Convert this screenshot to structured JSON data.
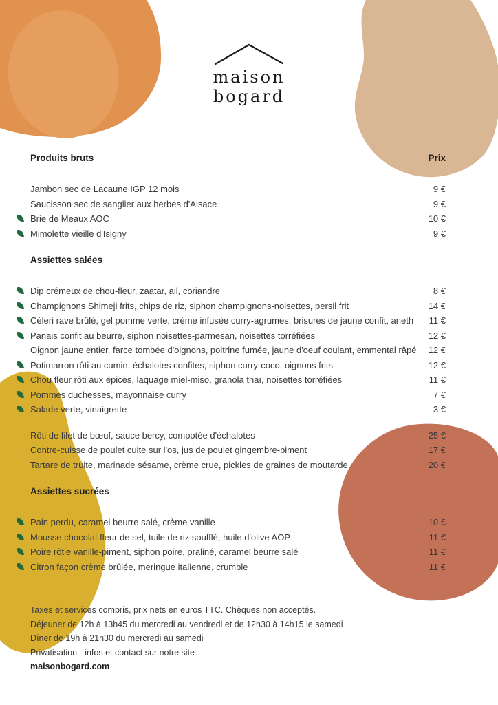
{
  "logo": {
    "name_line1": "maison",
    "name_line2": "bogard"
  },
  "price_column_label": "Prix",
  "sections": [
    {
      "title": "Produits bruts",
      "groups": [
        [
          {
            "leaf": false,
            "name": "Jambon sec de Lacaune IGP 12 mois",
            "price": "9 €"
          },
          {
            "leaf": false,
            "name": "Saucisson sec de sanglier aux herbes d'Alsace",
            "price": "9 €"
          },
          {
            "leaf": true,
            "name": "Brie de Meaux AOC",
            "price": "10 €"
          },
          {
            "leaf": true,
            "name": "Mimolette vieille d'Isigny",
            "price": "9 €"
          }
        ]
      ]
    },
    {
      "title": "Assiettes salées",
      "groups": [
        [
          {
            "leaf": true,
            "name": "Dip crémeux de chou-fleur, zaatar, ail, coriandre",
            "price": "8 €"
          },
          {
            "leaf": true,
            "name": "Champignons Shimeji frits, chips de riz, siphon champignons-noisettes, persil frit",
            "price": "14 €"
          },
          {
            "leaf": true,
            "name": "Céleri rave brûlé, gel pomme verte, crème infusée curry-agrumes, brisures de jaune confit, aneth",
            "price": "11 €"
          },
          {
            "leaf": true,
            "name": "Panais confit au beurre, siphon noisettes-parmesan, noisettes torréfiées",
            "price": "12 €"
          },
          {
            "leaf": false,
            "name": "Oignon jaune entier, farce tombée d'oignons, poitrine fumée, jaune d'oeuf coulant, emmental râpé",
            "price": "12 €"
          },
          {
            "leaf": true,
            "name": "Potimarron rôti au cumin, échalotes confites, siphon curry-coco, oignons frits",
            "price": "12 €"
          },
          {
            "leaf": true,
            "name": "Chou fleur rôti aux épices, laquage miel-miso, granola thaï, noisettes torréfiées",
            "price": "11 €"
          },
          {
            "leaf": true,
            "name": "Pommes duchesses, mayonnaise curry",
            "price": "7 €"
          },
          {
            "leaf": true,
            "name": "Salade verte, vinaigrette",
            "price": "3 €"
          }
        ],
        [
          {
            "leaf": false,
            "name": "Rôti de filet de bœuf, sauce bercy, compotée d'échalotes",
            "price": "25 €"
          },
          {
            "leaf": false,
            "name": "Contre-cuisse de poulet cuite sur l'os, jus de poulet gingembre-piment",
            "price": "17 €"
          },
          {
            "leaf": false,
            "name": "Tartare de truite, marinade sésame, crème crue, pickles de graines de moutarde",
            "price": "20 €"
          }
        ]
      ]
    },
    {
      "title": "Assiettes sucrées",
      "groups": [
        [
          {
            "leaf": true,
            "name": "Pain perdu, caramel beurre salé, crème vanille",
            "price": "10 €"
          },
          {
            "leaf": true,
            "name": "Mousse chocolat fleur de sel, tuile de riz soufflé, huile d'olive AOP",
            "price": "11 €"
          },
          {
            "leaf": true,
            "name": "Poire rôtie vanille-piment, siphon poire, praliné, caramel beurre salé",
            "price": "11 €"
          },
          {
            "leaf": true,
            "name": "Citron façon crème brûlée, meringue italienne, crumble",
            "price": "11 €"
          }
        ]
      ]
    }
  ],
  "footer": {
    "lines": [
      "Taxes et services compris, prix nets en euros TTC. Chèques non acceptés.",
      "Déjeuner de 12h à 13h45 du mercredi au vendredi et de 12h30 à 14h15 le samedi",
      "Dîner de 19h à 21h30 du mercredi au samedi",
      "Privatisation - infos et contact sur notre site"
    ],
    "website": "maisonbogard.com"
  },
  "colors": {
    "background": "#ffffff",
    "orange_blob": "#e0924e",
    "orange_blob_inner": "#e69e5f",
    "tan_blob": "#d9b795",
    "yellow_blob": "#d8af2e",
    "terracotta_blob": "#c37258",
    "leaf_green": "#226b41",
    "heading_text": "#1f1f1f",
    "body_text": "#3a3a3a"
  }
}
